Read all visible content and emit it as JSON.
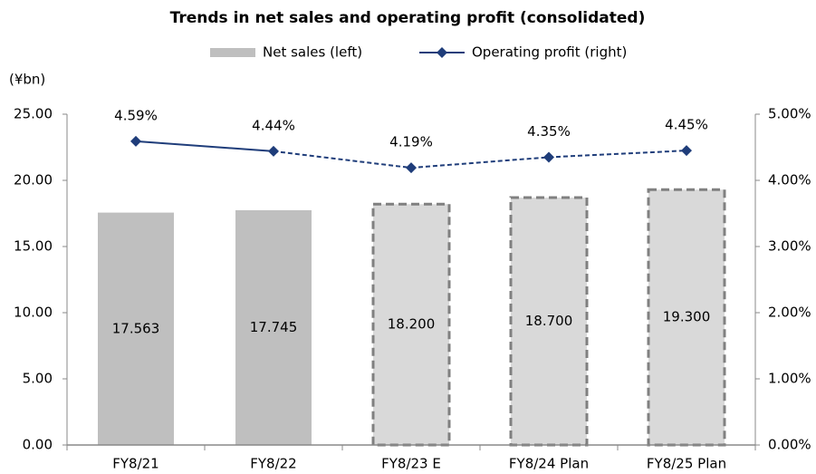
{
  "chart_data": {
    "type": "bar_line",
    "title": "Trends in net sales and operating profit (consolidated)",
    "y_unit": "(¥bn)",
    "categories": [
      "FY8/21",
      "FY8/22",
      "FY8/23 E",
      "FY8/24 Plan",
      "FY8/25 Plan"
    ],
    "series": [
      {
        "name": "Net sales (left)",
        "type": "bar",
        "color": "#bfbfbf",
        "colors": [
          "#bfbfbf",
          "#bfbfbf",
          "#d9d9d9",
          "#d9d9d9",
          "#d9d9d9"
        ],
        "dashed": [
          false,
          false,
          true,
          true,
          true
        ],
        "values": [
          17.563,
          17.745,
          18.2,
          18.7,
          19.3
        ],
        "value_labels": [
          "17.563",
          "17.745",
          "18.200",
          "18.700",
          "19.300"
        ]
      },
      {
        "name": "Operating profit (right)",
        "type": "line",
        "axis": "y2",
        "color": "#1f3d7a",
        "dashed": [
          false,
          false,
          true,
          true,
          true
        ],
        "values": [
          4.59,
          4.44,
          4.19,
          4.35,
          4.45
        ],
        "value_labels": [
          "4.59%",
          "4.44%",
          "4.19%",
          "4.35%",
          "4.45%"
        ]
      }
    ],
    "ylim": [
      0,
      25
    ],
    "yticks": [
      {
        "value": 0,
        "label": "0.00"
      },
      {
        "value": 5,
        "label": "5.00"
      },
      {
        "value": 10,
        "label": "10.00"
      },
      {
        "value": 15,
        "label": "15.00"
      },
      {
        "value": 20,
        "label": "20.00"
      },
      {
        "value": 25,
        "label": "25.00"
      }
    ],
    "y2lim": [
      0,
      5
    ],
    "y2ticks": [
      {
        "value": 0,
        "label": "0.00%"
      },
      {
        "value": 1,
        "label": "1.00%"
      },
      {
        "value": 2,
        "label": "2.00%"
      },
      {
        "value": 3,
        "label": "3.00%"
      },
      {
        "value": 4,
        "label": "4.00%"
      },
      {
        "value": 5,
        "label": "5.00%"
      }
    ],
    "legend": "top"
  }
}
